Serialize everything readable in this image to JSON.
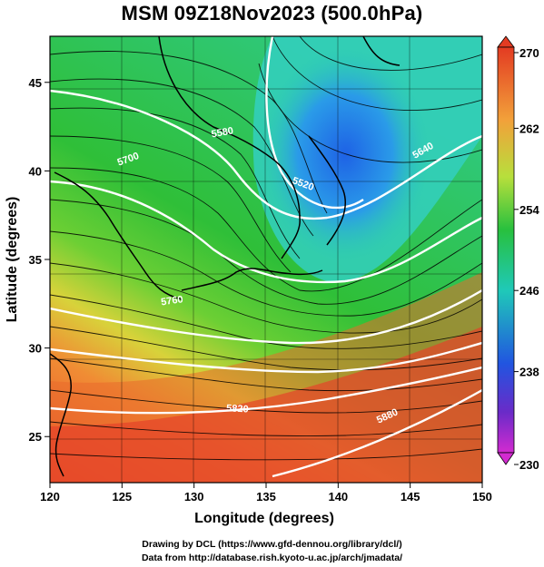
{
  "title": "MSM 09Z18Nov2023 (500.0hPa)",
  "axes": {
    "xlabel": "Longitude (degrees)",
    "ylabel": "Latitude  (degrees)",
    "xticks": [
      "120",
      "125",
      "130",
      "135",
      "140",
      "145",
      "150"
    ],
    "yticks": [
      "25",
      "30",
      "35",
      "40",
      "45"
    ],
    "xlim": [
      120,
      150
    ],
    "ylim": [
      22.4,
      47.6
    ]
  },
  "colorbar": {
    "ticks": [
      "270",
      "262",
      "254",
      "246",
      "238",
      "230"
    ],
    "range": [
      230,
      270
    ]
  },
  "contour_labels": [
    "5580",
    "5520",
    "5640",
    "5700",
    "5760",
    "5820",
    "5880"
  ],
  "credits": {
    "line1": "Drawing by DCL (https://www.gfd-dennou.org/library/dcl/)",
    "line2": "Data from http://database.rish.kyoto-u.ac.jp/arch/jmadata/"
  },
  "colors": {
    "warm": "#e8502a",
    "mild": "#33cc33",
    "cold": "#2277dd",
    "contour": "#ffffff"
  }
}
